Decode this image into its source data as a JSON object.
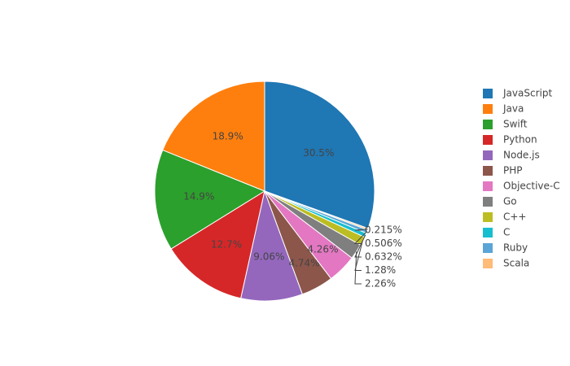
{
  "chart_data": {
    "type": "pie",
    "categories": [
      "JavaScript",
      "Java",
      "Swift",
      "Python",
      "Node.js",
      "PHP",
      "Objective-C",
      "Go",
      "C++",
      "C",
      "Ruby",
      "Scala"
    ],
    "values": [
      30.5,
      18.9,
      14.9,
      12.7,
      9.06,
      4.74,
      4.26,
      2.26,
      1.28,
      0.632,
      0.506,
      0.215
    ],
    "value_labels": [
      "30.5%",
      "18.9%",
      "14.9%",
      "12.7%",
      "9.06%",
      "4.74%",
      "4.26%",
      "2.26%",
      "1.28%",
      "0.632%",
      "0.506%",
      "0.215%"
    ],
    "colors": [
      "#1f77b4",
      "#ff7f0e",
      "#2ca02c",
      "#d62728",
      "#9467bd",
      "#8c564b",
      "#e377c2",
      "#7f7f7f",
      "#bcbd22",
      "#17becf",
      "#5aa5d6",
      "#ffbb78"
    ],
    "legend": "right"
  }
}
